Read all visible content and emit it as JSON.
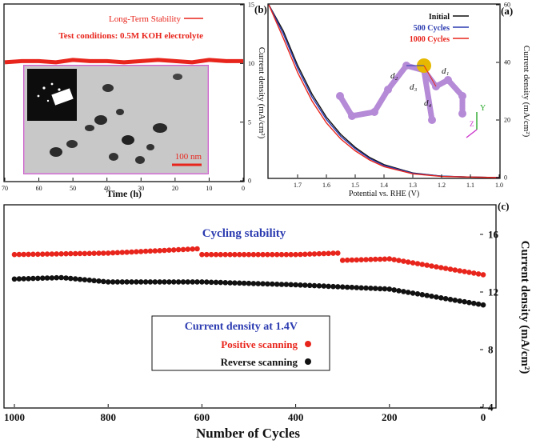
{
  "colors": {
    "red": "#e8251c",
    "black": "#111111",
    "blue": "#2b3bb0",
    "inset_border": "#cc66cc",
    "molecule": "#b58ad6",
    "ball": "#e6b800"
  },
  "chart_data": [
    {
      "id": "a",
      "panel_label": "(a)",
      "type": "line",
      "title": "",
      "xlabel": "Potential vs. RHE (V)",
      "ylabel": "Current density (mA/cm²)",
      "x_reversed": true,
      "y_on_right": true,
      "xlim": [
        1.0,
        1.8
      ],
      "ylim": [
        0,
        60
      ],
      "x_ticks": [
        "1.0",
        "1.1",
        "1.2",
        "1.3",
        "1.4",
        "1.5",
        "1.6",
        "1.7"
      ],
      "x_tick_values": [
        1.0,
        1.1,
        1.2,
        1.3,
        1.4,
        1.5,
        1.6,
        1.7
      ],
      "y_ticks": [
        "0",
        "20",
        "40",
        "60"
      ],
      "y_tick_values": [
        0,
        20,
        40,
        60
      ],
      "legend": {
        "position": "top-left",
        "entries": [
          "Initial",
          "500 Cycles",
          "1000 Cycles"
        ]
      },
      "series": [
        {
          "name": "Initial",
          "color": "#111111",
          "x": [
            1.0,
            1.1,
            1.2,
            1.3,
            1.4,
            1.45,
            1.5,
            1.55,
            1.6,
            1.65,
            1.7,
            1.75,
            1.8
          ],
          "y": [
            0,
            0.2,
            0.5,
            1.6,
            4.5,
            7.0,
            10.5,
            15.0,
            21.0,
            29.0,
            39.0,
            51.0,
            62.0
          ]
        },
        {
          "name": "500 Cycles",
          "color": "#2b3bb0",
          "x": [
            1.0,
            1.1,
            1.2,
            1.3,
            1.4,
            1.45,
            1.5,
            1.55,
            1.6,
            1.65,
            1.7,
            1.75,
            1.8
          ],
          "y": [
            0,
            0.2,
            0.5,
            1.5,
            4.2,
            6.6,
            10.0,
            14.3,
            20.2,
            28.0,
            38.0,
            50.0,
            61.0
          ]
        },
        {
          "name": "1000 Cycles",
          "color": "#e8251c",
          "x": [
            1.0,
            1.1,
            1.2,
            1.3,
            1.4,
            1.45,
            1.5,
            1.55,
            1.6,
            1.65,
            1.7,
            1.75,
            1.8
          ],
          "y": [
            0,
            0.2,
            0.4,
            1.3,
            3.8,
            6.1,
            9.3,
            13.4,
            19.0,
            26.6,
            36.5,
            48.5,
            60.0
          ]
        }
      ],
      "inset": {
        "labels": [
          "d₁",
          "d₂",
          "d₃",
          "d₄",
          "Y",
          "Z"
        ]
      }
    },
    {
      "id": "b",
      "panel_label": "(b)",
      "type": "line",
      "title": "",
      "xlabel": "Time (h)",
      "ylabel": "Current density (mA/cm²)",
      "x_reversed": true,
      "y_on_right": true,
      "xlim": [
        0,
        70
      ],
      "ylim": [
        0,
        15
      ],
      "x_ticks": [
        "0",
        "10",
        "20",
        "30",
        "40",
        "50",
        "60",
        "70"
      ],
      "x_tick_values": [
        0,
        10,
        20,
        30,
        40,
        50,
        60,
        70
      ],
      "y_ticks": [
        "0",
        "5",
        "10",
        "15"
      ],
      "y_tick_values": [
        0,
        5,
        10,
        15
      ],
      "legend": {
        "position": "top-right",
        "entries": [
          "Long-Term Stability"
        ]
      },
      "annotation": "Test conditions: 0.5M KOH electrolyte",
      "series": [
        {
          "name": "Long-Term Stability",
          "color": "#e8251c",
          "x": [
            0,
            5,
            10,
            15,
            20,
            25,
            30,
            35,
            40,
            45,
            50,
            55,
            60,
            65,
            70
          ],
          "y": [
            10.2,
            10.2,
            10.3,
            10.1,
            10.2,
            10.3,
            10.2,
            10.1,
            10.2,
            10.2,
            10.3,
            10.1,
            10.2,
            10.2,
            10.1
          ]
        }
      ],
      "inset": {
        "scale_bar": "100 nm"
      }
    },
    {
      "id": "c",
      "panel_label": "(c)",
      "type": "scatter",
      "title": "Cycling stability",
      "xlabel": "Number of Cycles",
      "ylabel": "Current density (mA/cm²)",
      "x_reversed": true,
      "y_on_right": true,
      "xlim": [
        0,
        1000
      ],
      "ylim": [
        4,
        18
      ],
      "x_ticks": [
        "0",
        "200",
        "400",
        "600",
        "800",
        "1000"
      ],
      "x_tick_values": [
        0,
        200,
        400,
        600,
        800,
        1000
      ],
      "y_ticks": [
        "4",
        "8",
        "12",
        "16"
      ],
      "y_tick_values": [
        4,
        8,
        12,
        16
      ],
      "legend": {
        "position": "bottom-center",
        "title": "Current density at 1.4V",
        "entries": [
          "Positive scanning",
          "Reverse scanning"
        ]
      },
      "series": [
        {
          "name": "Positive scanning",
          "color": "#e8251c",
          "x": [
            0,
            200,
            300,
            310,
            400,
            600,
            610,
            800,
            1000
          ],
          "y": [
            13.2,
            14.3,
            14.2,
            14.7,
            14.6,
            14.6,
            15.0,
            14.7,
            14.6
          ]
        },
        {
          "name": "Reverse scanning",
          "color": "#111111",
          "x": [
            0,
            200,
            400,
            600,
            800,
            900,
            1000
          ],
          "y": [
            11.1,
            12.2,
            12.5,
            12.7,
            12.7,
            13.0,
            12.9
          ]
        }
      ]
    }
  ]
}
